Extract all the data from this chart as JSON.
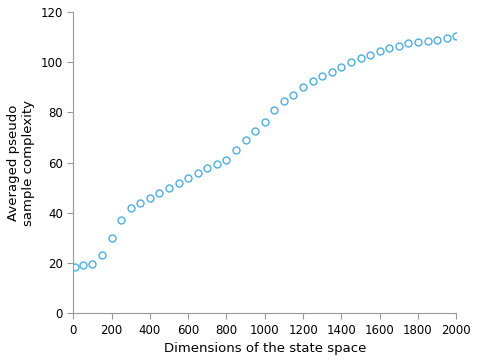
{
  "x_values": [
    10,
    50,
    100,
    150,
    200,
    250,
    300,
    350,
    400,
    450,
    500,
    550,
    600,
    650,
    700,
    750,
    800,
    850,
    900,
    950,
    1000,
    1050,
    1100,
    1150,
    1200,
    1250,
    1300,
    1350,
    1400,
    1450,
    1500,
    1550,
    1600,
    1650,
    1700,
    1750,
    1800,
    1850,
    1900,
    1950,
    2000
  ],
  "y_values": [
    18.5,
    19.0,
    19.5,
    23.0,
    30.0,
    37.0,
    42.0,
    44.0,
    46.0,
    48.0,
    50.0,
    52.0,
    54.0,
    56.0,
    58.0,
    59.5,
    61.0,
    65.0,
    69.0,
    72.5,
    76.0,
    81.0,
    84.5,
    87.0,
    90.0,
    92.5,
    94.5,
    96.0,
    98.0,
    100.0,
    101.5,
    103.0,
    104.5,
    105.5,
    106.5,
    107.5,
    108.0,
    108.5,
    109.0,
    109.5,
    110.5
  ],
  "marker": "o",
  "marker_color": "#4DAEDF",
  "marker_facecolor": "none",
  "marker_size": 5,
  "marker_linewidth": 1.0,
  "xlabel": "Dimensions of the state space",
  "ylabel": "Averaged pseudo\nsample complexity",
  "xlim": [
    0,
    2000
  ],
  "ylim": [
    0,
    120
  ],
  "xticks": [
    0,
    200,
    400,
    600,
    800,
    1000,
    1200,
    1400,
    1600,
    1800,
    2000
  ],
  "yticks": [
    0,
    20,
    40,
    60,
    80,
    100,
    120
  ],
  "figsize": [
    4.78,
    3.62
  ],
  "dpi": 100,
  "xlabel_fontsize": 9.5,
  "ylabel_fontsize": 9.5,
  "tick_fontsize": 8.5,
  "background_color": "#ffffff",
  "spine_color": "#999999"
}
